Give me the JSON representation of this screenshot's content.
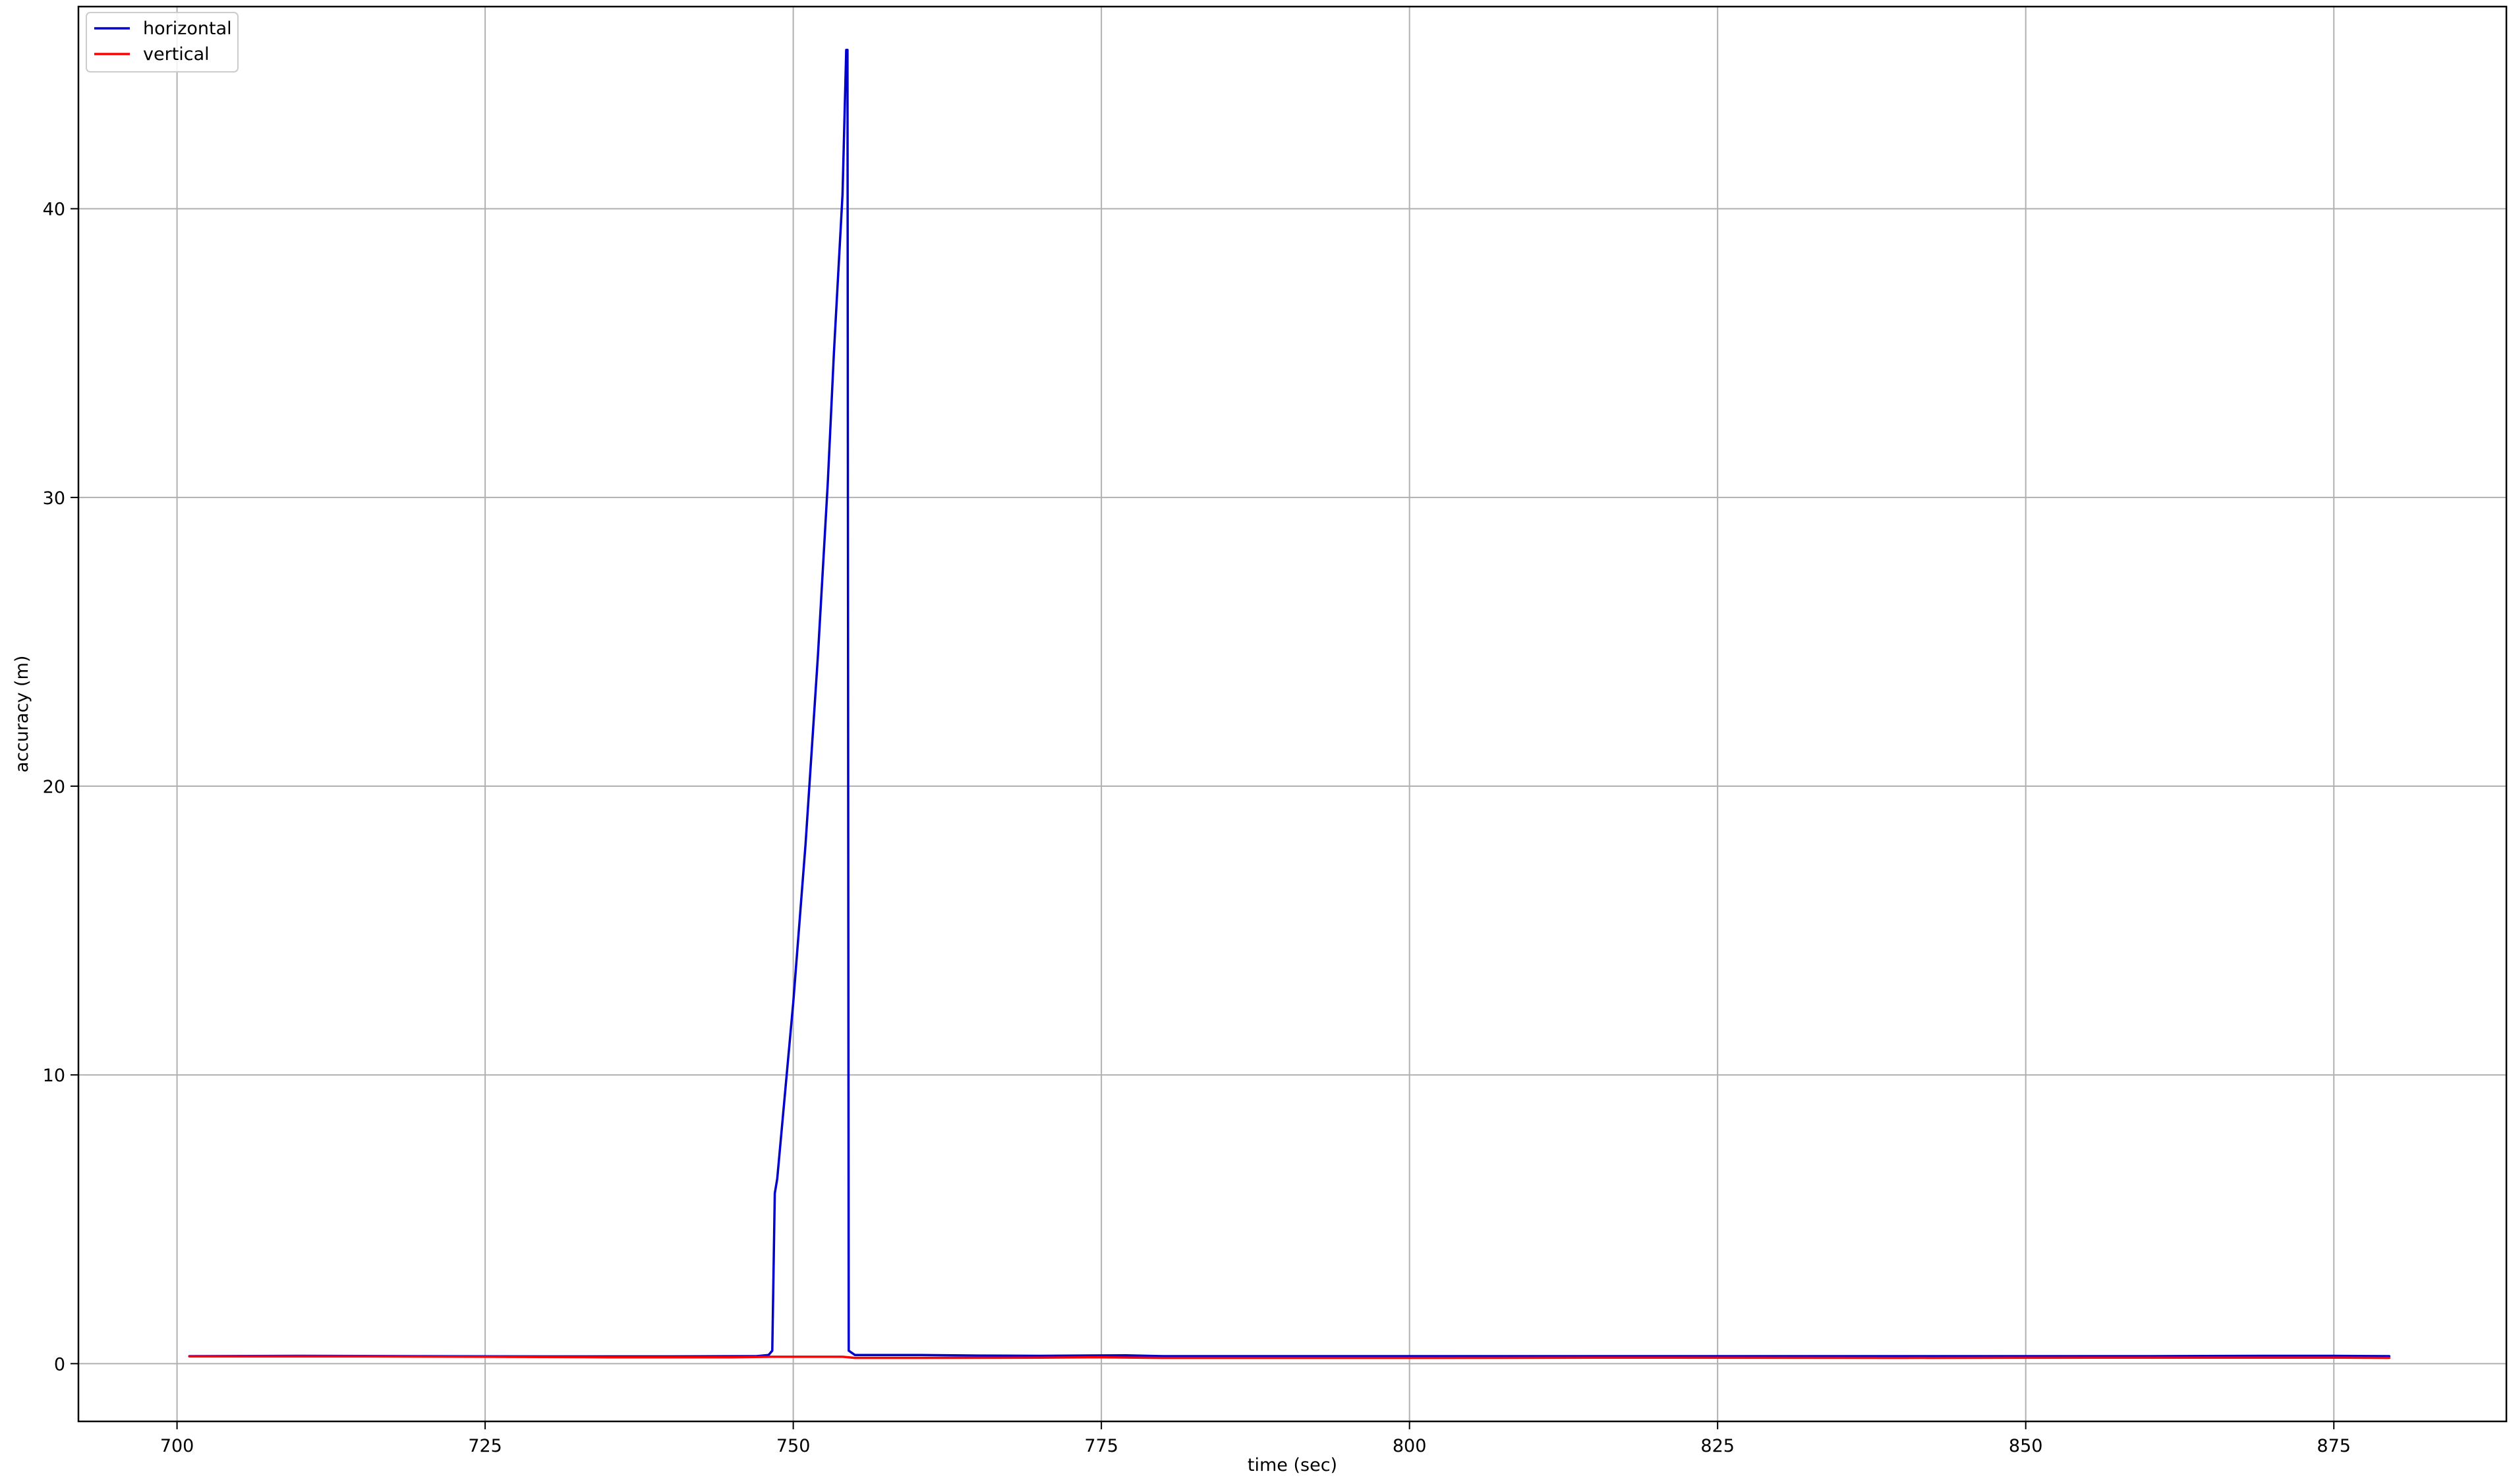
{
  "chart_data": {
    "type": "line",
    "title": "",
    "xlabel": "time (sec)",
    "ylabel": "accuracy (m)",
    "xlim": [
      692,
      889
    ],
    "ylim": [
      -2,
      47
    ],
    "grid": true,
    "legend_position": "top-left",
    "x_ticks": [
      700,
      725,
      750,
      775,
      800,
      825,
      850,
      875
    ],
    "y_ticks": [
      0,
      10,
      20,
      30,
      40
    ],
    "series": [
      {
        "name": "horizontal",
        "color": "#0000cc",
        "points": [
          [
            701,
            0.26
          ],
          [
            710,
            0.27
          ],
          [
            720,
            0.26
          ],
          [
            730,
            0.25
          ],
          [
            740,
            0.25
          ],
          [
            747,
            0.26
          ],
          [
            748,
            0.3
          ],
          [
            748.3,
            0.45
          ],
          [
            748.5,
            5.9
          ],
          [
            748.7,
            6.4
          ],
          [
            750,
            12.5
          ],
          [
            751,
            18
          ],
          [
            752,
            24.5
          ],
          [
            752.8,
            30.5
          ],
          [
            753.3,
            35
          ],
          [
            754,
            40.5
          ],
          [
            754.3,
            45.5
          ],
          [
            754.4,
            45.5
          ],
          [
            754.5,
            0.45
          ],
          [
            755,
            0.3
          ],
          [
            760,
            0.3
          ],
          [
            765,
            0.28
          ],
          [
            770,
            0.27
          ],
          [
            777,
            0.29
          ],
          [
            780,
            0.26
          ],
          [
            790,
            0.26
          ],
          [
            800,
            0.26
          ],
          [
            810,
            0.26
          ],
          [
            825,
            0.26
          ],
          [
            840,
            0.26
          ],
          [
            850,
            0.26
          ],
          [
            860,
            0.26
          ],
          [
            870,
            0.27
          ],
          [
            875,
            0.27
          ],
          [
            879.5,
            0.26
          ]
        ]
      },
      {
        "name": "vertical",
        "color": "#ff0000",
        "points": [
          [
            701,
            0.25
          ],
          [
            715,
            0.25
          ],
          [
            725,
            0.24
          ],
          [
            735,
            0.22
          ],
          [
            745,
            0.22
          ],
          [
            748,
            0.24
          ],
          [
            754,
            0.24
          ],
          [
            755,
            0.2
          ],
          [
            760,
            0.2
          ],
          [
            770,
            0.21
          ],
          [
            775,
            0.22
          ],
          [
            780,
            0.2
          ],
          [
            800,
            0.2
          ],
          [
            820,
            0.21
          ],
          [
            840,
            0.2
          ],
          [
            860,
            0.21
          ],
          [
            875,
            0.21
          ],
          [
            879.5,
            0.2
          ]
        ]
      }
    ]
  }
}
